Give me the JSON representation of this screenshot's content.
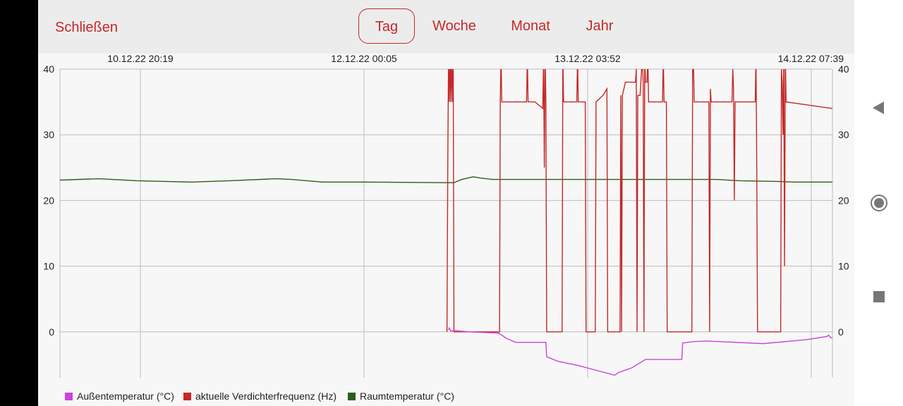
{
  "header": {
    "close_label": "Schließen",
    "tabs": [
      {
        "label": "Tag",
        "active": true
      },
      {
        "label": "Woche",
        "active": false
      },
      {
        "label": "Monat",
        "active": false
      },
      {
        "label": "Jahr",
        "active": false
      }
    ]
  },
  "chart_data": {
    "type": "line",
    "x_ticks": [
      "10.12.22 20:19",
      "12.12.22 00:05",
      "13.12.22 03:52",
      "14.12.22 07:39"
    ],
    "x_range": [
      0,
      100
    ],
    "ylim": [
      -7,
      40
    ],
    "y_ticks": [
      0,
      10,
      20,
      30,
      40
    ],
    "grid": true,
    "legend_position": "bottom-left",
    "series": [
      {
        "name": "Außentemperatur (°C)",
        "color": "#cc44dd",
        "points": [
          [
            50.3,
            0.3
          ],
          [
            50.4,
            0.6
          ],
          [
            50.6,
            0.1
          ],
          [
            51.0,
            0.2
          ],
          [
            53.0,
            0.0
          ],
          [
            56.8,
            -0.2
          ],
          [
            57.8,
            -1
          ],
          [
            59.0,
            -1.6
          ],
          [
            62.9,
            -1.6
          ],
          [
            63.0,
            -3.8
          ],
          [
            64.5,
            -4.5
          ],
          [
            67.0,
            -5.1
          ],
          [
            71.8,
            -6.6
          ],
          [
            72.3,
            -6.2
          ],
          [
            74.0,
            -5.5
          ],
          [
            75.8,
            -4.2
          ],
          [
            80.5,
            -4.2
          ],
          [
            80.6,
            -1.7
          ],
          [
            82.0,
            -1.5
          ],
          [
            83.7,
            -1.4
          ],
          [
            91.0,
            -1.8
          ],
          [
            96.6,
            -1.2
          ],
          [
            99.3,
            -0.7
          ],
          [
            99.5,
            -0.5
          ],
          [
            99.8,
            -0.9
          ],
          [
            100,
            -0.9
          ]
        ]
      },
      {
        "name": "aktuelle Verdichterfrequenz (Hz)",
        "color": "#c62828",
        "points": [
          [
            50.1,
            0
          ],
          [
            50.2,
            25
          ],
          [
            50.3,
            42
          ],
          [
            50.4,
            35
          ],
          [
            50.5,
            42
          ],
          [
            50.6,
            35
          ],
          [
            50.7,
            42
          ],
          [
            50.8,
            35
          ],
          [
            50.9,
            42
          ],
          [
            51.0,
            0
          ],
          [
            56.9,
            0
          ],
          [
            57.0,
            35
          ],
          [
            57.1,
            42
          ],
          [
            57.2,
            35
          ],
          [
            60.4,
            35
          ],
          [
            60.5,
            42
          ],
          [
            60.6,
            35
          ],
          [
            61.5,
            35
          ],
          [
            62.5,
            34
          ],
          [
            62.6,
            42
          ],
          [
            62.7,
            25
          ],
          [
            62.8,
            42
          ],
          [
            62.9,
            35
          ],
          [
            63.0,
            0
          ],
          [
            65.0,
            0
          ],
          [
            65.1,
            42
          ],
          [
            65.2,
            35
          ],
          [
            66.9,
            35
          ],
          [
            67.0,
            42
          ],
          [
            67.1,
            35
          ],
          [
            68.0,
            35
          ],
          [
            68.1,
            0
          ],
          [
            69.3,
            0
          ],
          [
            69.4,
            35
          ],
          [
            70.3,
            36
          ],
          [
            70.8,
            37
          ],
          [
            70.9,
            0
          ],
          [
            72.5,
            0
          ],
          [
            72.6,
            36
          ],
          [
            72.7,
            0
          ],
          [
            72.8,
            36
          ],
          [
            73.0,
            37
          ],
          [
            73.2,
            38
          ],
          [
            74.5,
            38
          ],
          [
            74.6,
            40
          ],
          [
            74.7,
            0
          ],
          [
            74.8,
            36
          ],
          [
            75.1,
            36
          ],
          [
            75.4,
            42
          ],
          [
            75.5,
            38
          ],
          [
            75.6,
            0
          ],
          [
            75.7,
            42
          ],
          [
            75.8,
            38
          ],
          [
            76.0,
            38
          ],
          [
            76.1,
            42
          ],
          [
            76.2,
            35
          ],
          [
            78.0,
            35
          ],
          [
            78.1,
            42
          ],
          [
            78.2,
            35
          ],
          [
            78.5,
            35
          ],
          [
            78.6,
            0
          ],
          [
            81.8,
            0
          ],
          [
            81.9,
            40
          ],
          [
            82.0,
            42
          ],
          [
            82.1,
            35
          ],
          [
            84.0,
            35
          ],
          [
            84.1,
            0
          ],
          [
            84.2,
            37
          ],
          [
            84.3,
            35
          ],
          [
            87.0,
            35
          ],
          [
            87.1,
            40
          ],
          [
            87.2,
            37
          ],
          [
            87.3,
            20
          ],
          [
            87.4,
            35
          ],
          [
            90.0,
            35
          ],
          [
            90.1,
            42
          ],
          [
            90.2,
            25
          ],
          [
            90.3,
            0
          ],
          [
            93.3,
            0
          ],
          [
            93.4,
            40
          ],
          [
            93.5,
            38
          ],
          [
            93.6,
            30
          ],
          [
            93.7,
            42
          ],
          [
            93.8,
            10
          ],
          [
            93.9,
            42
          ],
          [
            94.0,
            35
          ],
          [
            100,
            34
          ]
        ]
      },
      {
        "name": "Raumtemperatur (°C)",
        "color": "#2e5e1e",
        "points": [
          [
            0,
            23.1
          ],
          [
            5,
            23.3
          ],
          [
            10,
            23.0
          ],
          [
            17,
            22.8
          ],
          [
            22,
            23.0
          ],
          [
            28,
            23.3
          ],
          [
            30,
            23.2
          ],
          [
            34,
            22.8
          ],
          [
            40,
            22.8
          ],
          [
            51,
            22.7
          ],
          [
            52,
            23.2
          ],
          [
            53.5,
            23.6
          ],
          [
            54.5,
            23.4
          ],
          [
            56,
            23.2
          ],
          [
            65,
            23.2
          ],
          [
            70,
            23.2
          ],
          [
            80,
            23.2
          ],
          [
            85,
            23.2
          ],
          [
            88,
            23.0
          ],
          [
            93,
            22.9
          ],
          [
            95,
            22.8
          ],
          [
            100,
            22.8
          ]
        ]
      }
    ]
  },
  "navigation": {
    "back_icon": "back-triangle-icon",
    "home_icon": "home-circle-icon",
    "recents_icon": "recents-square-icon"
  }
}
